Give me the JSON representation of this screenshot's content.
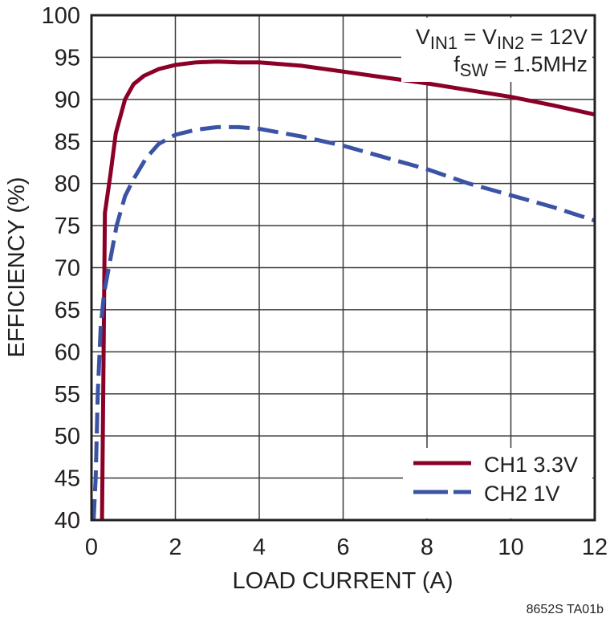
{
  "chart_data": {
    "type": "line",
    "title": "",
    "xlabel": "LOAD CURRENT (A)",
    "ylabel": "EFFICIENCY (%)",
    "xlim": [
      0,
      12
    ],
    "ylim": [
      40,
      100
    ],
    "x_ticks": [
      "0",
      "2",
      "4",
      "6",
      "8",
      "10",
      "12"
    ],
    "y_ticks": [
      "40",
      "45",
      "50",
      "55",
      "60",
      "65",
      "70",
      "75",
      "80",
      "85",
      "90",
      "95",
      "100"
    ],
    "grid": true,
    "legend_position": "lower right",
    "annotations": [
      {
        "text_main": "V",
        "sub1": "IN1",
        "mid": " = V",
        "sub2": "IN2",
        "tail": " = 12V"
      },
      {
        "text_main": "f",
        "sub1": "SW",
        "tail": " = 1.5MHz"
      }
    ],
    "series": [
      {
        "name": "CH1 3.3V",
        "color": "#8b0027",
        "style": "solid",
        "x": [
          0.25,
          0.28,
          0.32,
          0.45,
          0.58,
          0.8,
          1.0,
          1.25,
          1.6,
          2.0,
          2.5,
          3.0,
          3.5,
          4.0,
          5.0,
          6.0,
          7.0,
          8.0,
          9.0,
          10.0,
          11.0,
          12.0
        ],
        "values": [
          40,
          55,
          76.5,
          81,
          86,
          90,
          91.8,
          92.8,
          93.6,
          94.1,
          94.4,
          94.5,
          94.4,
          94.4,
          94.0,
          93.3,
          92.6,
          91.9,
          91.1,
          90.3,
          89.3,
          88.2
        ]
      },
      {
        "name": "CH2 1V",
        "color": "#3b53a4",
        "style": "dashed",
        "x": [
          0.05,
          0.1,
          0.15,
          0.22,
          0.3,
          0.45,
          0.6,
          0.8,
          1.0,
          1.3,
          1.6,
          2.0,
          2.5,
          3.0,
          3.5,
          4.0,
          5.0,
          6.0,
          7.0,
          8.0,
          9.0,
          10.0,
          11.0,
          12.0
        ],
        "values": [
          40,
          45,
          55,
          63,
          67,
          71,
          75,
          78.5,
          80.5,
          83,
          84.7,
          85.8,
          86.4,
          86.7,
          86.7,
          86.5,
          85.6,
          84.5,
          83.1,
          81.7,
          80.0,
          78.6,
          77.2,
          75.6
        ]
      }
    ]
  },
  "figure_id": "8652S TA01b"
}
